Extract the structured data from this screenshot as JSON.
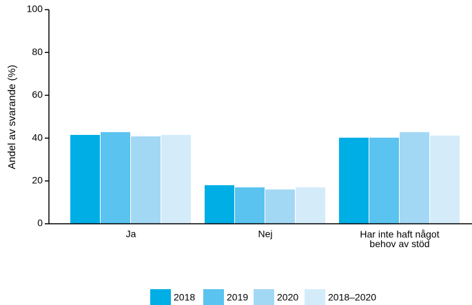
{
  "chart_data": {
    "type": "bar",
    "y_label": "Andel av svarande (%)",
    "categories": [
      "Ja",
      "Nej",
      "Har inte haft något\nbehov av stöd"
    ],
    "series": [
      {
        "name": "2018",
        "color": "#00aee6",
        "values": [
          41.5,
          18,
          40.2
        ]
      },
      {
        "name": "2019",
        "color": "#5ac3ef",
        "values": [
          42.8,
          17,
          40.2
        ]
      },
      {
        "name": "2020",
        "color": "#a3d8f5",
        "values": [
          40.8,
          16,
          42.8
        ]
      },
      {
        "name": "2018–2020",
        "color": "#d4ebfa",
        "values": [
          41.5,
          17,
          41.2
        ]
      }
    ],
    "ylim": [
      0,
      100
    ],
    "yticks": [
      0,
      20,
      40,
      60,
      80,
      100
    ],
    "grid": false,
    "legend": "bottom"
  }
}
